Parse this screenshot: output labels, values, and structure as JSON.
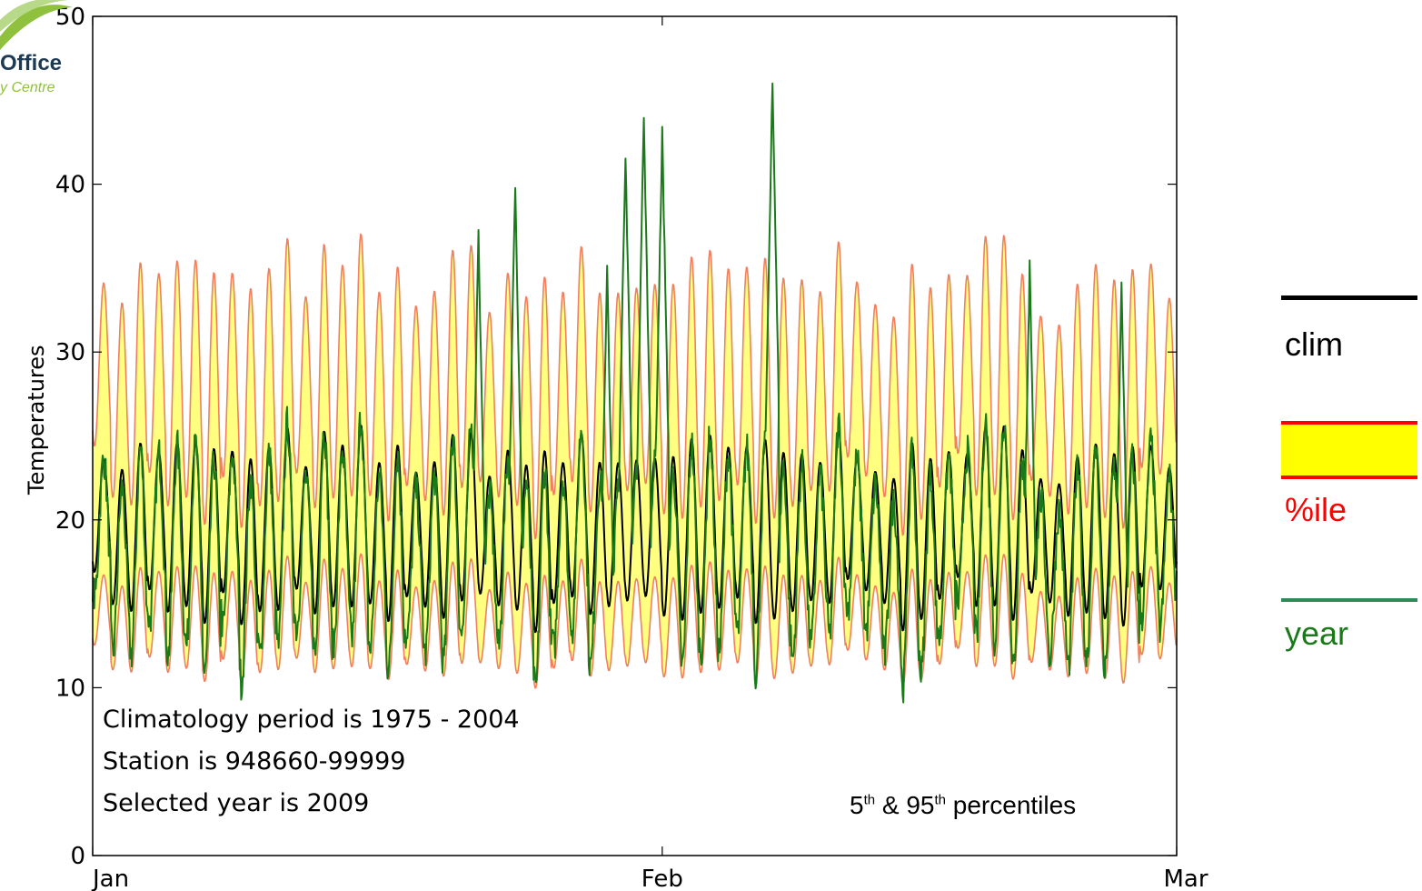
{
  "logo": {
    "word": "Office",
    "sub": "y Centre"
  },
  "chart_data": {
    "type": "line",
    "title": "",
    "xlabel": "",
    "ylabel": "Temperatures",
    "xlim": [
      "2009-01-01",
      "2009-03-01"
    ],
    "ylim": [
      0,
      50
    ],
    "yticks": [
      0,
      10,
      20,
      30,
      40,
      50
    ],
    "xticks": [
      {
        "date": "2009-01-01",
        "label": "Jan"
      },
      {
        "date": "2009-02-01",
        "label": "Feb"
      },
      {
        "date": "2009-03-01",
        "label": "Mar"
      }
    ],
    "grid": false,
    "series": [
      {
        "name": "clim",
        "kind": "line",
        "color": "#000000",
        "description_values": "diurnal cycle, approx 14-26 °C"
      },
      {
        "name": "%ile",
        "kind": "band",
        "fill": "#ffff80",
        "edge": "#f08060",
        "lower_range": [
          9,
          17
        ],
        "upper_range": [
          21,
          37
        ]
      },
      {
        "name": "year",
        "kind": "line",
        "color": "#1a7a1a",
        "peaks": [
          {
            "date": "2009-01-22",
            "value": 37
          },
          {
            "date": "2009-01-24",
            "value": 40
          },
          {
            "date": "2009-01-29",
            "value": 35
          },
          {
            "date": "2009-01-30",
            "value": 42
          },
          {
            "date": "2009-01-31",
            "value": 44
          },
          {
            "date": "2009-02-01",
            "value": 43
          },
          {
            "date": "2009-02-07",
            "value": 46
          },
          {
            "date": "2009-02-21",
            "value": 35
          },
          {
            "date": "2009-02-26",
            "value": 34
          }
        ]
      }
    ],
    "annotations": [
      "Climatology period is 1975 - 2004",
      "Station is 948660-99999",
      "Selected year is 2009"
    ],
    "percentile_note": {
      "a": "5",
      "a_sup": "th",
      "mid": " & 95",
      "b_sup": "th",
      "end": " percentiles"
    },
    "legend": {
      "placement": "right",
      "items": [
        {
          "label": "clim",
          "color": "#000000"
        },
        {
          "label": "%ile",
          "color": "#ff0000",
          "fill": "#ffff00"
        },
        {
          "label": "year",
          "color": "#1a7a1a",
          "line_color": "#2e8b57"
        }
      ]
    }
  }
}
